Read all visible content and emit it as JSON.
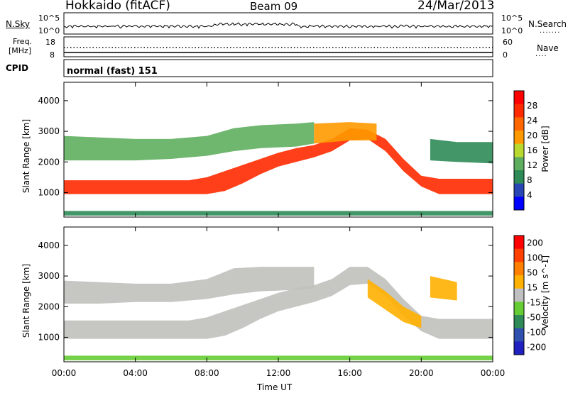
{
  "header": {
    "station": "Hokkaido (fitACF)",
    "beam": "Beam 09",
    "date": "24/Mar/2013"
  },
  "noise_panel": {
    "left_label": "N.Sky",
    "right_label": "N.Search",
    "left_ticks": [
      "10^5",
      "10^0"
    ],
    "right_ticks": [
      "10^5",
      "10^0"
    ]
  },
  "freq_panel": {
    "left_label_1": "Freq.",
    "left_label_2": "[MHz]",
    "right_label": "Nave",
    "left_ticks": [
      "18",
      "8"
    ],
    "right_ticks": [
      "60",
      "0"
    ],
    "freq_mhz": 11,
    "nave": 17
  },
  "cpid_panel": {
    "label": "CPID",
    "mode": "normal (fast) 151"
  },
  "colors": {
    "power_scale": [
      "#0000ff",
      "#2846b4",
      "#2e8b57",
      "#5fae5f",
      "#b9d92e",
      "#ff9900",
      "#ff6600",
      "#ff2a00",
      "#ff0000"
    ],
    "velocity_scale": [
      "#2020c0",
      "#3050b0",
      "#2e8b57",
      "#66cc33",
      "#c0c0c0",
      "#ffb000",
      "#ff8000",
      "#ff4000",
      "#ff0000"
    ]
  },
  "chart_data": [
    {
      "type": "heatmap",
      "name": "Power",
      "xlabel": "",
      "ylabel": "Slant Range [km]",
      "ylim": [
        200,
        4600
      ],
      "xlim": [
        0,
        24
      ],
      "yticks": [
        "1000",
        "2000",
        "3000",
        "4000"
      ],
      "colorbar": {
        "label": "Power [dB]",
        "ticks": [
          "4",
          "8",
          "12",
          "16",
          "20",
          "24",
          "28"
        ],
        "range": [
          0,
          32
        ]
      },
      "bands": [
        {
          "x": [
            0.0,
            1.0,
            2.0,
            3.0,
            4.0,
            5.0,
            6.0,
            7.0,
            8.0,
            9.0,
            10.0,
            11.0,
            12.0,
            13.0,
            14.0,
            15.0,
            16.0,
            17.0,
            18.0,
            19.0,
            20.0,
            21.0,
            22.0,
            23.0,
            24.0
          ],
          "y_low": [
            950,
            950,
            950,
            950,
            950,
            950,
            950,
            950,
            950,
            1050,
            1300,
            1600,
            1850,
            2000,
            2150,
            2350,
            2700,
            2750,
            2350,
            1700,
            1200,
            950,
            950,
            950,
            950
          ],
          "y_high": [
            1400,
            1400,
            1400,
            1400,
            1400,
            1400,
            1400,
            1400,
            1500,
            1700,
            1900,
            2100,
            2300,
            2450,
            2550,
            2750,
            3100,
            3050,
            2750,
            2100,
            1550,
            1450,
            1450,
            1450,
            1450
          ],
          "value": 26
        },
        {
          "x": [
            0.0,
            2.0,
            4.0,
            6.0,
            8.0,
            9.5,
            11.0,
            13.0,
            14.0
          ],
          "y_low": [
            2050,
            2050,
            2050,
            2100,
            2200,
            2350,
            2450,
            2500,
            2600
          ],
          "y_high": [
            2850,
            2800,
            2750,
            2750,
            2850,
            3100,
            3200,
            3250,
            3300
          ],
          "value": 12
        },
        {
          "x": [
            14.0,
            16.0,
            17.5
          ],
          "y_low": [
            2600,
            2700,
            2700
          ],
          "y_high": [
            3250,
            3300,
            3250
          ],
          "value": 18
        },
        {
          "x": [
            20.5,
            22.0,
            24.0
          ],
          "y_low": [
            2050,
            2000,
            1950
          ],
          "y_high": [
            2750,
            2650,
            2650
          ],
          "value": 10
        },
        {
          "x": [
            0.0,
            24.0
          ],
          "y_low": [
            250,
            250
          ],
          "y_high": [
            400,
            400
          ],
          "value": 8
        }
      ]
    },
    {
      "type": "heatmap",
      "name": "Velocity",
      "xlabel": "Time UT",
      "ylabel": "Slant Range [km]",
      "ylim": [
        200,
        4600
      ],
      "xlim": [
        0,
        24
      ],
      "xticks": [
        "00:00",
        "04:00",
        "08:00",
        "12:00",
        "16:00",
        "20:00",
        "00:00"
      ],
      "yticks": [
        "1000",
        "2000",
        "3000",
        "4000"
      ],
      "colorbar": {
        "label": "Velocity [m s^-1]",
        "ticks": [
          "200",
          "100",
          "50",
          "15",
          "-15",
          "-50",
          "-100",
          "-200"
        ],
        "range": [
          -250,
          250
        ]
      },
      "bands": [
        {
          "x": [
            0.0,
            1.0,
            2.0,
            3.0,
            4.0,
            5.0,
            6.0,
            7.0,
            8.0,
            9.0,
            10.0,
            11.0,
            12.0,
            13.0,
            14.0,
            15.0,
            16.0,
            17.0,
            18.0,
            19.0,
            20.0,
            21.0,
            22.0,
            23.0,
            24.0
          ],
          "y_low": [
            950,
            950,
            950,
            950,
            950,
            950,
            950,
            950,
            950,
            1050,
            1300,
            1600,
            1850,
            2000,
            2150,
            2350,
            2700,
            2750,
            2350,
            1700,
            1200,
            950,
            950,
            950,
            950
          ],
          "y_high": [
            1550,
            1550,
            1550,
            1550,
            1550,
            1550,
            1550,
            1550,
            1650,
            1850,
            2050,
            2250,
            2450,
            2600,
            2700,
            2900,
            3300,
            3300,
            2900,
            2250,
            1700,
            1600,
            1600,
            1600,
            1600
          ],
          "value": 0
        },
        {
          "x": [
            0.0,
            2.0,
            4.0,
            6.0,
            8.0,
            9.5,
            11.0,
            13.0,
            14.0
          ],
          "y_low": [
            2100,
            2100,
            2150,
            2150,
            2250,
            2400,
            2500,
            2550,
            2600
          ],
          "y_high": [
            2850,
            2800,
            2750,
            2750,
            2900,
            3250,
            3300,
            3300,
            3300
          ],
          "value": 0
        },
        {
          "x": [
            17.0,
            18.0,
            19.0,
            20.0
          ],
          "y_low": [
            2300,
            1900,
            1500,
            1300
          ],
          "y_high": [
            2900,
            2500,
            2000,
            1700
          ],
          "value": 60
        },
        {
          "x": [
            20.5,
            22.0
          ],
          "y_low": [
            2300,
            2200
          ],
          "y_high": [
            3000,
            2800
          ],
          "value": 60
        },
        {
          "x": [
            0.0,
            24.0
          ],
          "y_low": [
            250,
            250
          ],
          "y_high": [
            400,
            400
          ],
          "value": -40
        }
      ]
    }
  ]
}
